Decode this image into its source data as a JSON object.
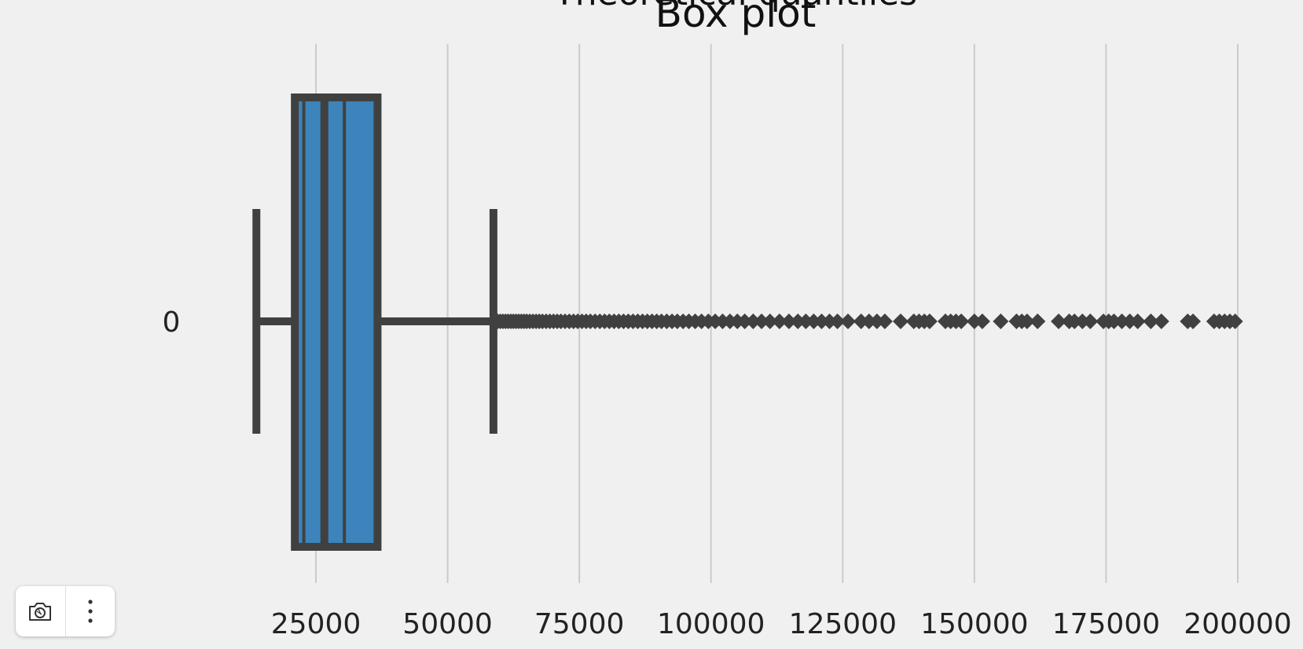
{
  "chart_data": {
    "type": "box",
    "orientation": "horizontal",
    "title": "Box plot",
    "subtitle": "Theoretical quantiles",
    "categories": [
      "0"
    ],
    "xticks": [
      25000,
      50000,
      75000,
      100000,
      125000,
      150000,
      175000,
      200000
    ],
    "xlim": [
      4000,
      202000
    ],
    "grid": true,
    "colors": {
      "box": "#3c84bb",
      "line": "#404040",
      "background": "#f0f0f0",
      "grid": "#cbcbcb"
    },
    "box": {
      "whisker_low": 13700,
      "q1": 21000,
      "median": 26600,
      "q3": 36700,
      "whisker_high": 58700,
      "notch_low": 22700,
      "notch_high": 30400
    },
    "outliers": [
      59000,
      59500,
      60000,
      60500,
      61000,
      61500,
      62000,
      62500,
      63000,
      63500,
      64000,
      64500,
      65000,
      65600,
      66200,
      66800,
      67400,
      68000,
      68700,
      69400,
      70100,
      70800,
      71500,
      72300,
      73100,
      73900,
      74700,
      75500,
      76300,
      77100,
      78000,
      78900,
      79800,
      80700,
      81600,
      82500,
      83400,
      84300,
      85200,
      86100,
      87000,
      87900,
      88800,
      89700,
      90600,
      91600,
      92600,
      93600,
      94700,
      95800,
      97000,
      98200,
      99500,
      100800,
      102200,
      103600,
      105000,
      106400,
      108000,
      109600,
      111200,
      113000,
      114800,
      116500,
      118000,
      119500,
      121000,
      122500,
      124000,
      126000,
      128500,
      130000,
      131500,
      133000,
      136000,
      138500,
      139500,
      140500,
      141500,
      144500,
      145500,
      146500,
      147500,
      150000,
      151500,
      155000,
      158000,
      159000,
      160000,
      162000,
      166000,
      168000,
      169000,
      170500,
      172000,
      174500,
      175500,
      176500,
      178000,
      179500,
      181000,
      183500,
      185500,
      190500,
      191500,
      195500,
      196500,
      197500,
      198500,
      199500
    ]
  },
  "toolbar": {
    "camera_icon": "camera-lens-icon",
    "more_icon": "more-vertical-icon"
  }
}
